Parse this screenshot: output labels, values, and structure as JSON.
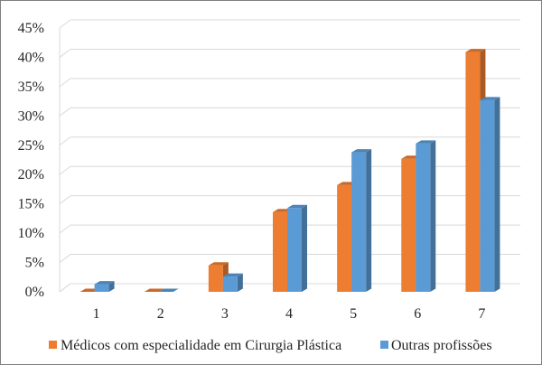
{
  "chart_data": {
    "type": "bar",
    "categories": [
      "1",
      "2",
      "3",
      "4",
      "5",
      "6",
      "7"
    ],
    "series": [
      {
        "name": "Médicos com especialidade em Cirurgia Plástica",
        "color": "#ED7D31",
        "values": [
          0,
          0,
          4.5,
          13.6,
          18.2,
          22.7,
          40.9
        ]
      },
      {
        "name": "Outras profissões",
        "color": "#5B9BD5",
        "values": [
          1.3,
          0,
          2.6,
          14.3,
          23.8,
          25.3,
          32.7
        ]
      }
    ],
    "ylim": [
      0,
      45
    ],
    "yticks": [
      "0%",
      "5%",
      "10%",
      "15%",
      "20%",
      "25%",
      "30%",
      "35%",
      "40%",
      "45%"
    ],
    "yunit": "%",
    "grid": true,
    "legend_position": "bottom",
    "style": "3d-column"
  }
}
